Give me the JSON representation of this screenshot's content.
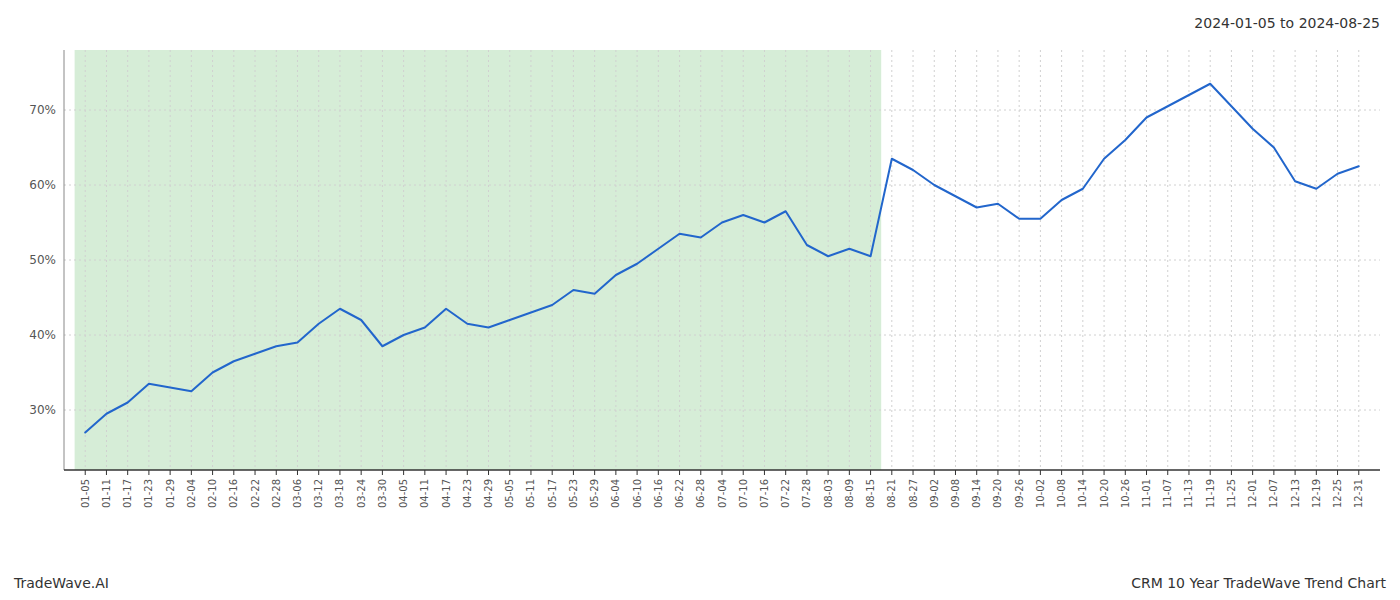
{
  "chart_data": {
    "type": "line",
    "title": "2024-01-05 to 2024-08-25",
    "annotations": [
      "TradeWave.AI",
      "CRM 10 Year TradeWave Trend Chart"
    ],
    "color": "#2266CC",
    "grid": true,
    "ylim": [
      22,
      78
    ],
    "yticks": [
      {
        "value": 30,
        "label": "30%"
      },
      {
        "value": 40,
        "label": "40%"
      },
      {
        "value": 50,
        "label": "50%"
      },
      {
        "value": 60,
        "label": "60%"
      },
      {
        "value": 70,
        "label": "70%"
      }
    ],
    "shaded_range": [
      "01-05",
      "08-15"
    ],
    "categories": [
      "01-05",
      "01-11",
      "01-17",
      "01-23",
      "01-29",
      "02-04",
      "02-10",
      "02-16",
      "02-22",
      "02-28",
      "03-06",
      "03-12",
      "03-18",
      "03-24",
      "03-30",
      "04-05",
      "04-11",
      "04-17",
      "04-23",
      "04-29",
      "05-05",
      "05-11",
      "05-17",
      "05-23",
      "05-29",
      "06-04",
      "06-10",
      "06-16",
      "06-22",
      "06-28",
      "07-04",
      "07-10",
      "07-16",
      "07-22",
      "07-28",
      "08-03",
      "08-09",
      "08-15",
      "08-21",
      "08-27",
      "09-02",
      "09-08",
      "09-14",
      "09-20",
      "09-26",
      "10-02",
      "10-08",
      "10-14",
      "10-20",
      "10-26",
      "11-01",
      "11-07",
      "11-13",
      "11-19",
      "11-25",
      "12-01",
      "12-07",
      "12-13",
      "12-19",
      "12-25",
      "12-31"
    ],
    "values": [
      27.0,
      29.5,
      31.0,
      33.5,
      33.0,
      32.5,
      35.0,
      36.5,
      37.5,
      38.5,
      39.0,
      41.5,
      43.5,
      42.0,
      38.5,
      40.0,
      41.0,
      43.5,
      41.5,
      41.0,
      42.0,
      43.0,
      44.0,
      46.0,
      45.5,
      48.0,
      49.5,
      51.5,
      53.5,
      53.0,
      55.0,
      56.0,
      55.0,
      56.5,
      52.0,
      50.5,
      51.5,
      50.5,
      63.5,
      62.0,
      60.0,
      58.5,
      57.0,
      57.5,
      55.5,
      55.5,
      58.0,
      59.5,
      63.5,
      66.0,
      69.0,
      70.5,
      72.0,
      73.5,
      70.5,
      67.5,
      65.0,
      60.5,
      59.5,
      61.5,
      62.5
    ]
  }
}
